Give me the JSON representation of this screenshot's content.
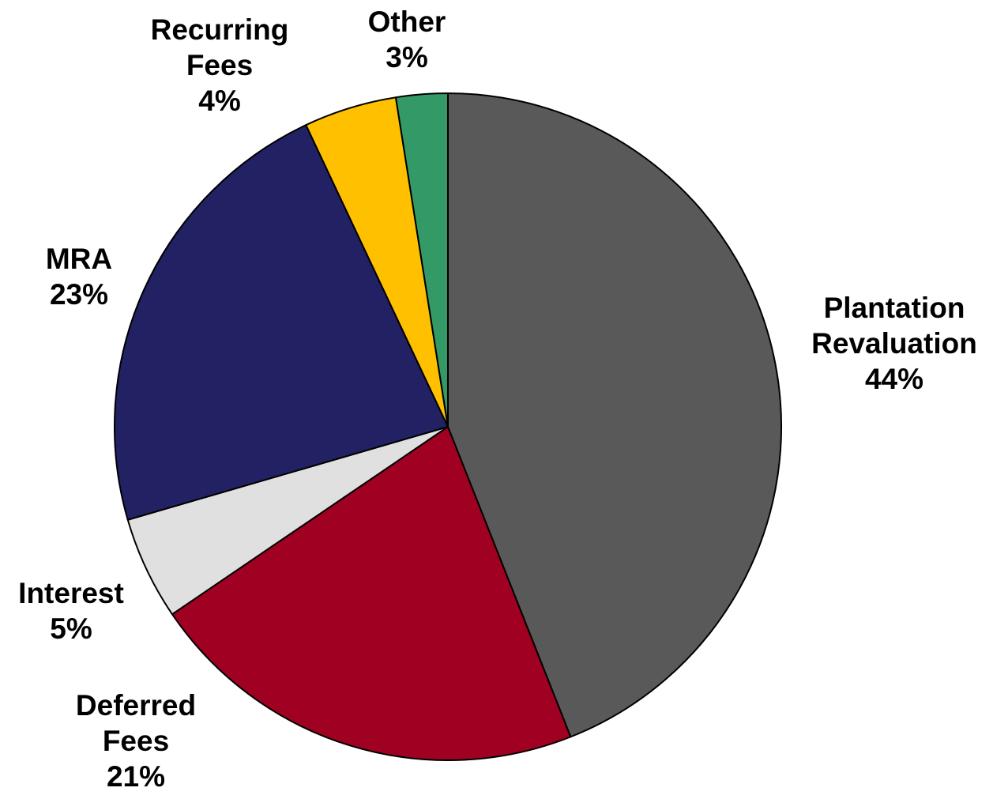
{
  "chart_data": {
    "type": "pie",
    "title": "",
    "start": "12 o'clock",
    "direction": "clockwise",
    "slices": [
      {
        "name": "Plantation Revaluation",
        "label_lines": [
          "Plantation",
          "Revaluation"
        ],
        "pct_label": "44%",
        "value": 44,
        "color": "#595959"
      },
      {
        "name": "Deferred Fees",
        "label_lines": [
          "Deferred",
          "Fees"
        ],
        "pct_label": "21%",
        "value": 21.5,
        "color": "#A00021"
      },
      {
        "name": "Interest",
        "label_lines": [
          "Interest"
        ],
        "pct_label": "5%",
        "value": 5,
        "color": "#E0E0E0"
      },
      {
        "name": "MRA",
        "label_lines": [
          "MRA"
        ],
        "pct_label": "23%",
        "value": 22.5,
        "color": "#212163"
      },
      {
        "name": "Recurring Fees",
        "label_lines": [
          "Recurring",
          "Fees"
        ],
        "pct_label": "4%",
        "value": 4.5,
        "color": "#FFC000"
      },
      {
        "name": "Other",
        "label_lines": [
          "Other"
        ],
        "pct_label": "3%",
        "value": 2.5,
        "color": "#339966"
      }
    ],
    "legend": "none",
    "data_labels": "outside"
  }
}
